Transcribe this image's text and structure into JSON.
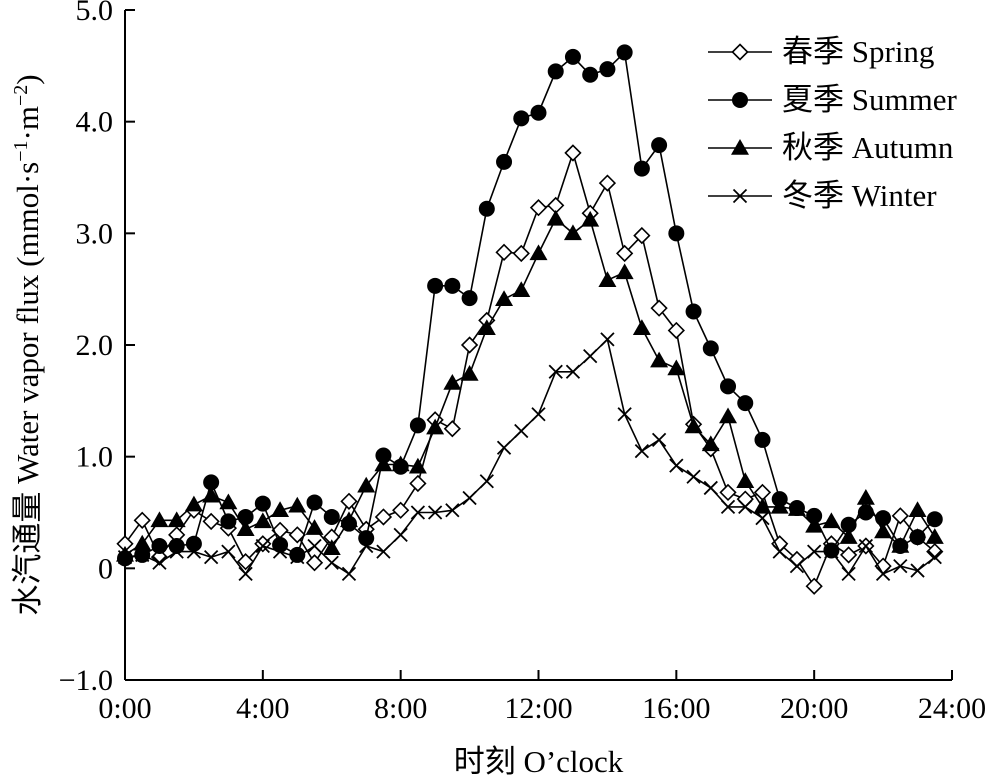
{
  "chart_data": {
    "type": "line",
    "title": "",
    "xlabel": "时刻 O’clock",
    "ylabel_cn": "水汽通量 Water vapor flux (mmol·s",
    "ylabel_sup1": "−1",
    "ylabel_mid": "·m",
    "ylabel_sup2": "−2",
    "ylabel_end": ")",
    "xlim": [
      0,
      24
    ],
    "ylim": [
      -1,
      5
    ],
    "xticks": [
      0,
      4,
      8,
      12,
      16,
      20,
      24
    ],
    "xtick_labels": [
      "0:00",
      "4:00",
      "8:00",
      "12:00",
      "16:00",
      "20:00",
      "24:00"
    ],
    "yticks": [
      -1,
      0,
      1,
      2,
      3,
      4,
      5
    ],
    "ytick_labels": [
      "−1.0",
      "0",
      "1.0",
      "2.0",
      "3.0",
      "4.0",
      "5.0"
    ],
    "grid": false,
    "legend_position": "top-right",
    "series": [
      {
        "name": "春季 Spring",
        "marker": "diamond-open",
        "x": [
          0,
          0.5,
          1,
          1.5,
          2,
          2.5,
          3,
          3.5,
          4,
          4.5,
          5,
          5.5,
          6,
          6.5,
          7,
          7.5,
          8,
          8.5,
          9,
          9.5,
          10,
          10.5,
          11,
          11.5,
          12,
          12.5,
          13,
          13.5,
          14,
          14.5,
          15,
          15.5,
          16,
          16.5,
          17,
          17.5,
          18,
          18.5,
          19,
          19.5,
          20,
          20.5,
          21,
          21.5,
          22,
          22.5,
          23,
          23.5
        ],
        "y": [
          0.22,
          0.43,
          0.1,
          0.3,
          0.52,
          0.42,
          0.36,
          0.06,
          0.22,
          0.34,
          0.3,
          0.05,
          0.28,
          0.6,
          0.35,
          0.46,
          0.52,
          0.76,
          1.33,
          1.25,
          2.0,
          2.22,
          2.83,
          2.82,
          3.23,
          3.25,
          3.72,
          3.18,
          3.45,
          2.82,
          2.98,
          2.33,
          2.13,
          1.29,
          1.07,
          0.68,
          0.62,
          0.68,
          0.22,
          0.08,
          -0.16,
          0.22,
          0.12,
          0.2,
          0.02,
          0.47,
          0.28,
          0.15
        ]
      },
      {
        "name": "夏季 Summer",
        "marker": "circle-filled",
        "x": [
          0,
          0.5,
          1,
          1.5,
          2,
          2.5,
          3,
          3.5,
          4,
          4.5,
          5,
          5.5,
          6,
          6.5,
          7,
          7.5,
          8,
          8.5,
          9,
          9.5,
          10,
          10.5,
          11,
          11.5,
          12,
          12.5,
          13,
          13.5,
          14,
          14.5,
          15,
          15.5,
          16,
          16.5,
          17,
          17.5,
          18,
          18.5,
          19,
          19.5,
          20,
          20.5,
          21,
          21.5,
          22,
          22.5,
          23,
          23.5
        ],
        "y": [
          0.09,
          0.12,
          0.2,
          0.2,
          0.22,
          0.77,
          0.42,
          0.46,
          0.58,
          0.21,
          0.12,
          0.59,
          0.46,
          0.4,
          0.27,
          1.01,
          0.91,
          1.28,
          2.53,
          2.53,
          2.42,
          3.22,
          3.64,
          4.03,
          4.08,
          4.45,
          4.58,
          4.42,
          4.47,
          4.62,
          3.58,
          3.79,
          3.0,
          2.3,
          1.97,
          1.63,
          1.48,
          1.15,
          0.62,
          0.54,
          0.47,
          0.16,
          0.39,
          0.5,
          0.45,
          0.2,
          0.28,
          0.44
        ]
      },
      {
        "name": "秋季 Autumn",
        "marker": "triangle-filled",
        "x": [
          0,
          0.5,
          1,
          1.5,
          2,
          2.5,
          3,
          3.5,
          4,
          4.5,
          5,
          5.5,
          6,
          6.5,
          7,
          7.5,
          8,
          8.5,
          9,
          9.5,
          10,
          10.5,
          11,
          11.5,
          12,
          12.5,
          13,
          13.5,
          14,
          14.5,
          15,
          15.5,
          16,
          16.5,
          17,
          17.5,
          18,
          18.5,
          19,
          19.5,
          20,
          20.5,
          21,
          21.5,
          22,
          22.5,
          23,
          23.5
        ],
        "y": [
          0.12,
          0.22,
          0.43,
          0.43,
          0.57,
          0.65,
          0.59,
          0.35,
          0.42,
          0.52,
          0.56,
          0.36,
          0.18,
          0.43,
          0.74,
          0.93,
          0.93,
          0.91,
          1.26,
          1.66,
          1.74,
          2.15,
          2.41,
          2.49,
          2.82,
          3.13,
          3.0,
          3.12,
          2.58,
          2.65,
          2.15,
          1.86,
          1.79,
          1.27,
          1.11,
          1.36,
          0.78,
          0.55,
          0.55,
          0.53,
          0.38,
          0.42,
          0.28,
          0.63,
          0.33,
          0.2,
          0.52,
          0.28
        ]
      },
      {
        "name": "冬季 Winter",
        "marker": "x",
        "x": [
          0,
          0.5,
          1,
          1.5,
          2,
          2.5,
          3,
          3.5,
          4,
          4.5,
          5,
          5.5,
          6,
          6.5,
          7,
          7.5,
          8,
          8.5,
          9,
          9.5,
          10,
          10.5,
          11,
          11.5,
          12,
          12.5,
          13,
          13.5,
          14,
          14.5,
          15,
          15.5,
          16,
          16.5,
          17,
          17.5,
          18,
          18.5,
          19,
          19.5,
          20,
          20.5,
          21,
          21.5,
          22,
          22.5,
          23,
          23.5
        ],
        "y": [
          0.1,
          0.12,
          0.05,
          0.15,
          0.15,
          0.1,
          0.15,
          -0.05,
          0.2,
          0.15,
          0.1,
          0.2,
          0.05,
          -0.05,
          0.2,
          0.15,
          0.3,
          0.5,
          0.5,
          0.52,
          0.63,
          0.78,
          1.08,
          1.23,
          1.38,
          1.76,
          1.76,
          1.9,
          2.05,
          1.38,
          1.05,
          1.15,
          0.92,
          0.82,
          0.72,
          0.55,
          0.55,
          0.45,
          0.15,
          0.02,
          0.15,
          0.15,
          -0.05,
          0.2,
          -0.05,
          0.02,
          -0.02,
          0.1
        ]
      }
    ]
  }
}
